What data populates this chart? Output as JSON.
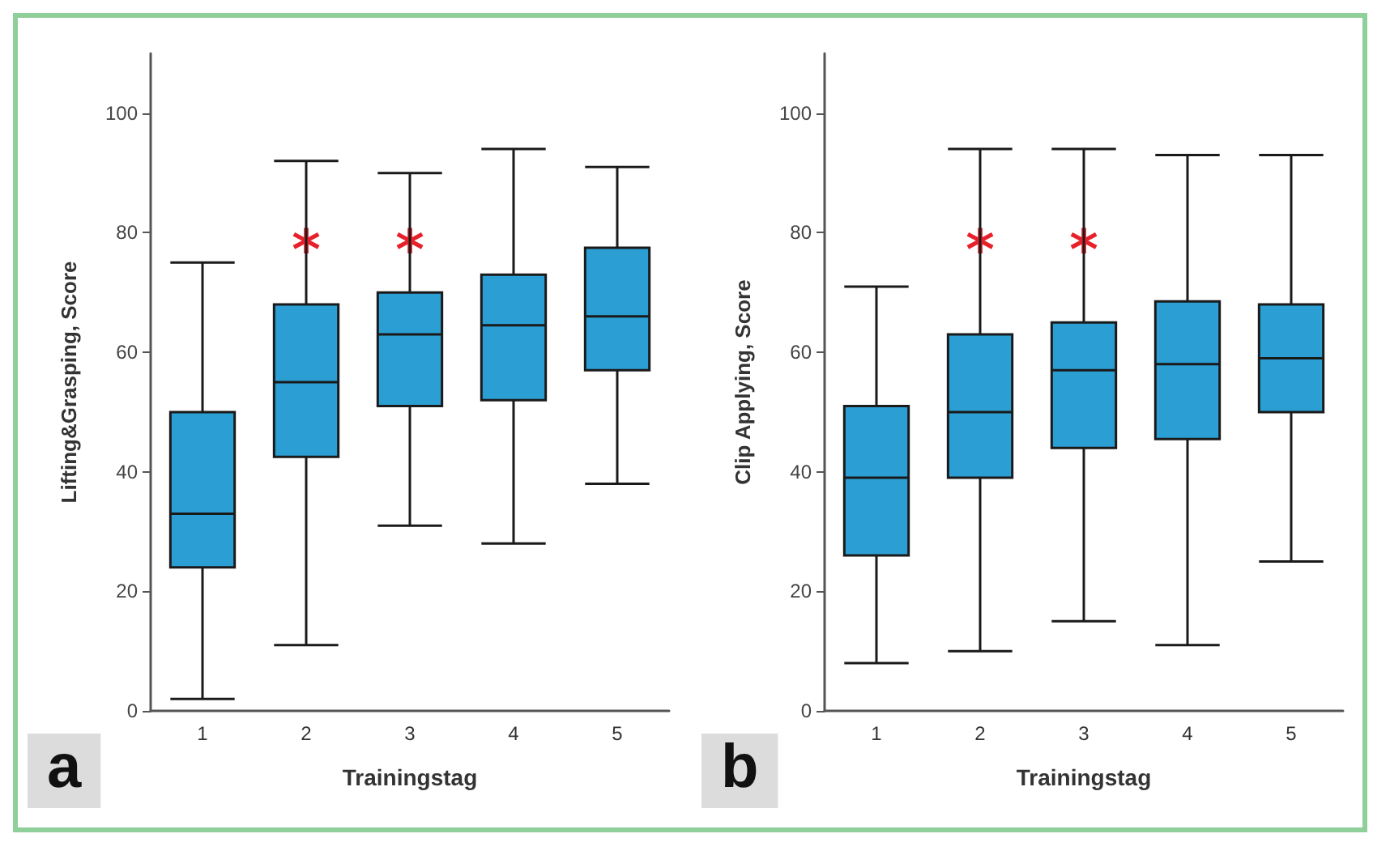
{
  "chart_data": [
    {
      "type": "box",
      "title": "a",
      "xlabel": "Trainingstag",
      "ylabel": "Lifting&Grasping, Score",
      "categories": [
        "1",
        "2",
        "3",
        "4",
        "5"
      ],
      "color": "#2b9fd4",
      "ylim": [
        0,
        110
      ],
      "yticks": [
        0,
        20,
        40,
        60,
        80,
        100
      ],
      "grid": false,
      "boxes": [
        {
          "low": 2,
          "q1": 24,
          "median": 33,
          "q3": 50,
          "high": 75
        },
        {
          "low": 11,
          "q1": 42.5,
          "median": 55,
          "q3": 68,
          "high": 92
        },
        {
          "low": 31,
          "q1": 51,
          "median": 63,
          "q3": 70,
          "high": 90
        },
        {
          "low": 28,
          "q1": 52,
          "median": 64.5,
          "q3": 73,
          "high": 94
        },
        {
          "low": 38,
          "q1": 57,
          "median": 66,
          "q3": 77.5,
          "high": 91
        }
      ],
      "annotations": [
        {
          "text": "*",
          "x": "2",
          "y": 77
        },
        {
          "text": "*",
          "x": "3",
          "y": 77
        }
      ]
    },
    {
      "type": "box",
      "title": "b",
      "xlabel": "Trainingstag",
      "ylabel": "Clip Applying, Score",
      "categories": [
        "1",
        "2",
        "3",
        "4",
        "5"
      ],
      "color": "#2b9fd4",
      "ylim": [
        0,
        110
      ],
      "yticks": [
        0,
        20,
        40,
        60,
        80,
        100
      ],
      "grid": false,
      "boxes": [
        {
          "low": 8,
          "q1": 26,
          "median": 39,
          "q3": 51,
          "high": 71
        },
        {
          "low": 10,
          "q1": 39,
          "median": 50,
          "q3": 63,
          "high": 94
        },
        {
          "low": 15,
          "q1": 44,
          "median": 57,
          "q3": 65,
          "high": 94
        },
        {
          "low": 11,
          "q1": 45.5,
          "median": 58,
          "q3": 68.5,
          "high": 93
        },
        {
          "low": 25,
          "q1": 50,
          "median": 59,
          "q3": 68,
          "high": 93
        }
      ],
      "annotations": [
        {
          "text": "*",
          "x": "2",
          "y": 77
        },
        {
          "text": "*",
          "x": "3",
          "y": 77
        }
      ]
    }
  ]
}
